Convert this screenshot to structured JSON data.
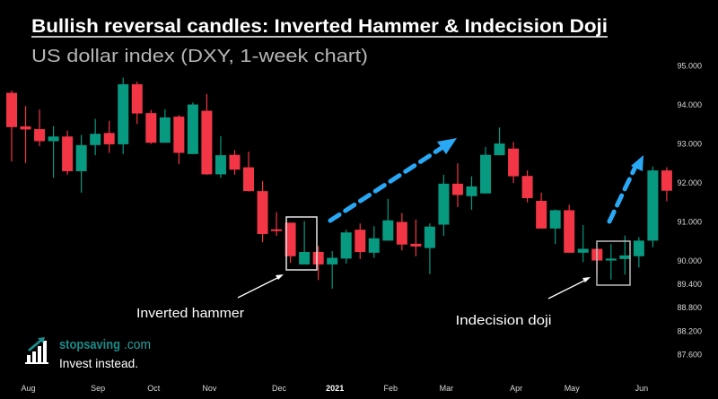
{
  "header": {
    "title": "Bullish reversal candles: Inverted Hammer & Indecision Doji",
    "subtitle": "US dollar index (DXY, 1-week chart)"
  },
  "annotations": {
    "inverted_hammer": "Inverted hammer",
    "indecision_doji": "Indecision doji",
    "arrow_color": "#29a9f5"
  },
  "logo": {
    "name": "stopsaving",
    "domain": ".com",
    "tagline": "Invest instead."
  },
  "colors": {
    "up": "#089981",
    "down": "#f23645",
    "background": "#000000"
  },
  "chart_data": {
    "type": "candlestick",
    "title": "Bullish reversal candles: Inverted Hammer & Indecision Doji",
    "subtitle": "US dollar index (DXY, 1-week chart)",
    "interval": "1 week",
    "columns": [
      "date",
      "open",
      "high",
      "low",
      "close"
    ],
    "candles": [
      [
        "2020-07-27",
        94.31,
        94.37,
        92.55,
        93.43
      ],
      [
        "2020-08-03",
        93.45,
        93.97,
        92.51,
        93.37
      ],
      [
        "2020-08-10",
        93.38,
        93.88,
        92.94,
        93.07
      ],
      [
        "2020-08-17",
        93.07,
        93.46,
        92.13,
        93.19
      ],
      [
        "2020-08-24",
        93.19,
        93.34,
        92.21,
        92.3
      ],
      [
        "2020-08-31",
        92.3,
        93.23,
        91.75,
        92.97
      ],
      [
        "2020-09-07",
        92.97,
        93.64,
        92.71,
        93.26
      ],
      [
        "2020-09-14",
        93.28,
        93.59,
        92.77,
        92.99
      ],
      [
        "2020-09-21",
        92.99,
        94.7,
        92.74,
        94.53
      ],
      [
        "2020-09-28",
        94.53,
        94.6,
        93.51,
        93.78
      ],
      [
        "2020-10-05",
        93.79,
        93.87,
        93.0,
        93.03
      ],
      [
        "2020-10-12",
        93.03,
        93.89,
        93.03,
        93.68
      ],
      [
        "2020-10-19",
        93.7,
        93.74,
        92.48,
        92.77
      ],
      [
        "2020-10-26",
        92.74,
        94.06,
        92.74,
        94.01
      ],
      [
        "2020-11-02",
        93.85,
        94.28,
        92.21,
        92.22
      ],
      [
        "2020-11-09",
        92.22,
        93.2,
        92.13,
        92.71
      ],
      [
        "2020-11-16",
        92.72,
        92.84,
        92.21,
        92.34
      ],
      [
        "2020-11-23",
        92.4,
        92.8,
        91.78,
        91.79
      ],
      [
        "2020-11-30",
        91.79,
        92.05,
        90.48,
        90.69
      ],
      [
        "2020-12-07",
        90.81,
        91.25,
        90.64,
        90.77
      ],
      [
        "2020-12-14",
        90.98,
        90.98,
        89.95,
        90.12
      ],
      [
        "2020-12-21",
        89.91,
        91.02,
        89.91,
        90.23
      ],
      [
        "2020-12-28",
        90.23,
        90.38,
        89.51,
        89.91
      ],
      [
        "2021-01-04",
        89.91,
        90.25,
        89.29,
        90.08
      ],
      [
        "2021-01-11",
        90.06,
        90.8,
        89.93,
        90.73
      ],
      [
        "2021-01-18",
        90.8,
        90.96,
        90.05,
        90.23
      ],
      [
        "2021-01-25",
        90.21,
        90.89,
        90.08,
        90.58
      ],
      [
        "2021-02-01",
        90.52,
        91.59,
        90.52,
        91.04
      ],
      [
        "2021-02-08",
        91.0,
        91.23,
        90.27,
        90.42
      ],
      [
        "2021-02-15",
        90.44,
        91.06,
        90.12,
        90.37
      ],
      [
        "2021-02-22",
        90.33,
        90.96,
        89.66,
        90.88
      ],
      [
        "2021-03-01",
        90.93,
        92.21,
        90.64,
        91.98
      ],
      [
        "2021-03-08",
        91.98,
        92.5,
        91.38,
        91.69
      ],
      [
        "2021-03-15",
        91.66,
        92.17,
        91.31,
        91.91
      ],
      [
        "2021-03-22",
        91.73,
        92.92,
        91.73,
        92.72
      ],
      [
        "2021-03-29",
        92.71,
        93.42,
        92.71,
        93.01
      ],
      [
        "2021-04-05",
        92.88,
        93.05,
        92.0,
        92.17
      ],
      [
        "2021-04-12",
        92.18,
        92.32,
        91.5,
        91.61
      ],
      [
        "2021-04-19",
        91.54,
        91.75,
        90.83,
        90.83
      ],
      [
        "2021-04-26",
        90.83,
        91.32,
        90.43,
        91.3
      ],
      [
        "2021-05-03",
        91.3,
        91.44,
        90.21,
        90.21
      ],
      [
        "2021-05-10",
        90.21,
        90.92,
        89.97,
        90.31
      ],
      [
        "2021-05-17",
        90.31,
        90.31,
        89.64,
        90.01
      ],
      [
        "2021-05-24",
        90.01,
        90.43,
        89.52,
        90.06
      ],
      [
        "2021-05-31",
        90.05,
        90.65,
        89.65,
        90.14
      ],
      [
        "2021-06-07",
        90.12,
        90.61,
        89.83,
        90.52
      ],
      [
        "2021-06-14",
        90.52,
        92.42,
        90.35,
        92.32
      ],
      [
        "2021-06-21",
        92.32,
        92.4,
        91.53,
        91.8
      ]
    ],
    "x_ticks": [
      {
        "label": "Aug",
        "date": "2020-08-03"
      },
      {
        "label": "Sep",
        "date": "2020-09-07"
      },
      {
        "label": "Oct",
        "date": "2020-10-05"
      },
      {
        "label": "Nov",
        "date": "2020-11-02"
      },
      {
        "label": "Dec",
        "date": "2020-12-07"
      },
      {
        "label": "2021",
        "date": "2021-01-04",
        "bold": true
      },
      {
        "label": "Feb",
        "date": "2021-02-01"
      },
      {
        "label": "Mar",
        "date": "2021-03-01"
      },
      {
        "label": "Apr",
        "date": "2021-04-05"
      },
      {
        "label": "May",
        "date": "2021-05-03"
      },
      {
        "label": "Jun",
        "date": "2021-06-07"
      }
    ],
    "y_ticks": [
      "95.000",
      "94.000",
      "93.000",
      "92.000",
      "91.000",
      "90.000",
      "89.400",
      "88.800",
      "88.200",
      "87.600"
    ],
    "y_axis_position": "right",
    "grid": false,
    "highlights": [
      {
        "label": "Inverted hammer",
        "from": "2020-12-14",
        "to": "2020-12-21"
      },
      {
        "label": "Indecision doji",
        "from": "2021-05-17",
        "to": "2021-05-31"
      }
    ]
  }
}
